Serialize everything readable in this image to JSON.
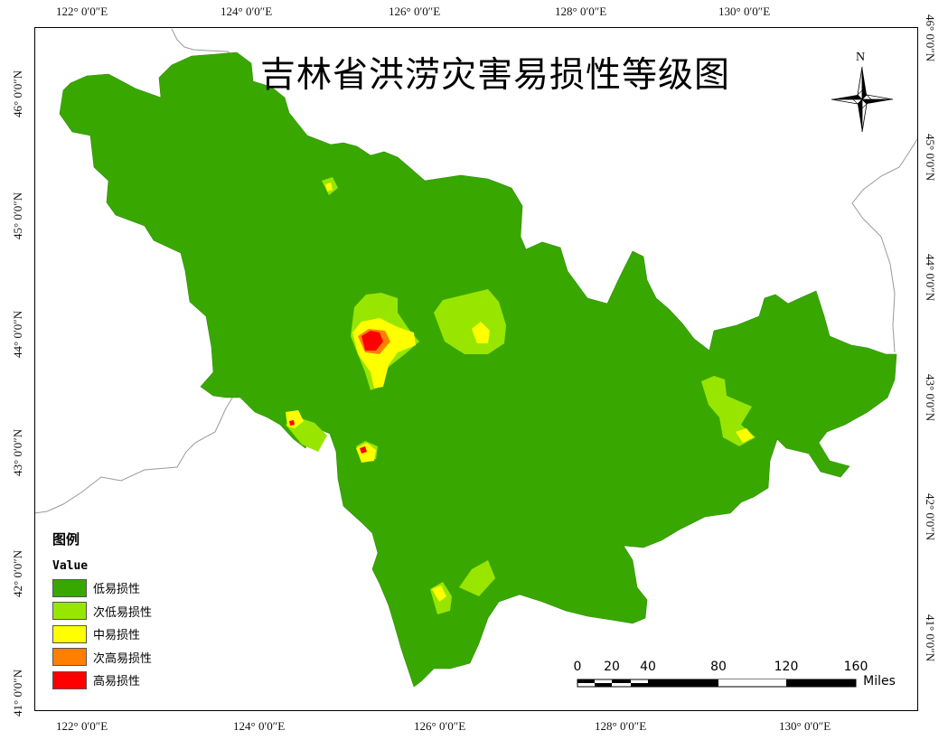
{
  "title": "吉林省洪涝灾害易损性等级图",
  "north_label": "N",
  "axes": {
    "top_lon": [
      "122° 0′0″E",
      "124° 0′0″E",
      "126° 0′0″E",
      "128° 0′0″E",
      "130° 0′0″E"
    ],
    "bottom_lon": [
      "122° 0′0″E",
      "124° 0′0″E",
      "126° 0′0″E",
      "128° 0′0″E",
      "130° 0′0″E"
    ],
    "left_lat": [
      "46° 0′0″N",
      "45° 0′0″N",
      "44° 0′0″N",
      "43° 0′0″N",
      "42° 0′0″N",
      "41° 0′0″N"
    ],
    "right_lat": [
      "46° 0′0″N",
      "45° 0′0″N",
      "44° 0′0″N",
      "43° 0′0″N",
      "42° 0′0″N",
      "41° 0′0″N"
    ]
  },
  "legend": {
    "title": "图例",
    "field": "Value",
    "items": [
      {
        "label": "低易损性",
        "color": "#38a800"
      },
      {
        "label": "次低易损性",
        "color": "#98e600"
      },
      {
        "label": "中易损性",
        "color": "#ffff00"
      },
      {
        "label": "次高易损性",
        "color": "#ff8000"
      },
      {
        "label": "高易损性",
        "color": "#ff0000"
      }
    ]
  },
  "scale_bar": {
    "labels": [
      "0",
      "20",
      "40",
      "80",
      "120",
      "160"
    ],
    "unit": "Miles"
  },
  "colors": {
    "low": "#38a800",
    "low_mid": "#98e600",
    "mid": "#ffff00",
    "high_mid": "#ff8000",
    "high": "#ff0000",
    "border": "#9a9a9a"
  }
}
